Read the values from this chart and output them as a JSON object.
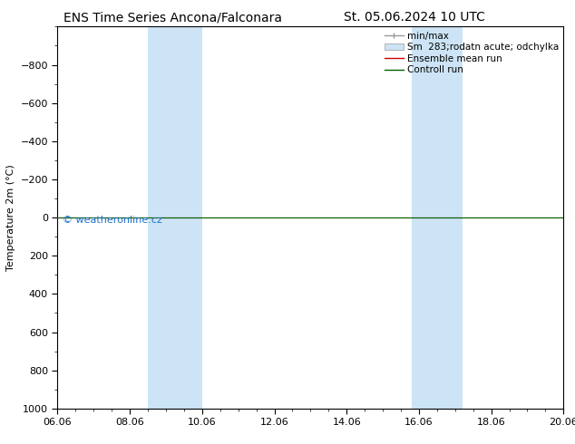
{
  "title_left": "ENS Time Series Ancona/Falconara",
  "title_right": "St. 05.06.2024 10 UTC",
  "ylabel": "Temperature 2m (°C)",
  "ylim_top": -1000,
  "ylim_bottom": 1000,
  "yticks": [
    -800,
    -600,
    -400,
    -200,
    0,
    200,
    400,
    600,
    800,
    1000
  ],
  "xtick_labels": [
    "06.06",
    "08.06",
    "10.06",
    "12.06",
    "14.06",
    "16.06",
    "18.06",
    "20.06"
  ],
  "xtick_positions": [
    0,
    2,
    4,
    6,
    8,
    10,
    12,
    14
  ],
  "xlim": [
    0,
    14
  ],
  "shaded_regions": [
    {
      "x_start": 2.5,
      "x_end": 4.0,
      "color": "#cce4f5"
    },
    {
      "x_start": 9.8,
      "x_end": 11.2,
      "color": "#cce4f5"
    }
  ],
  "horizontal_line_y": 0,
  "line_green_color": "#006400",
  "line_red_color": "#cc0000",
  "watermark_text": "© weatheronline.cz",
  "watermark_color": "#1a6fcc",
  "background_color": "#ffffff",
  "plot_bg_color": "#ffffff",
  "legend_minmax_color": "#999999",
  "legend_fill_color": "#cce4f5",
  "legend_fill_edge": "#999999",
  "title_fontsize": 10,
  "tick_fontsize": 8,
  "ylabel_fontsize": 8,
  "legend_fontsize": 7.5,
  "watermark_fontsize": 8
}
